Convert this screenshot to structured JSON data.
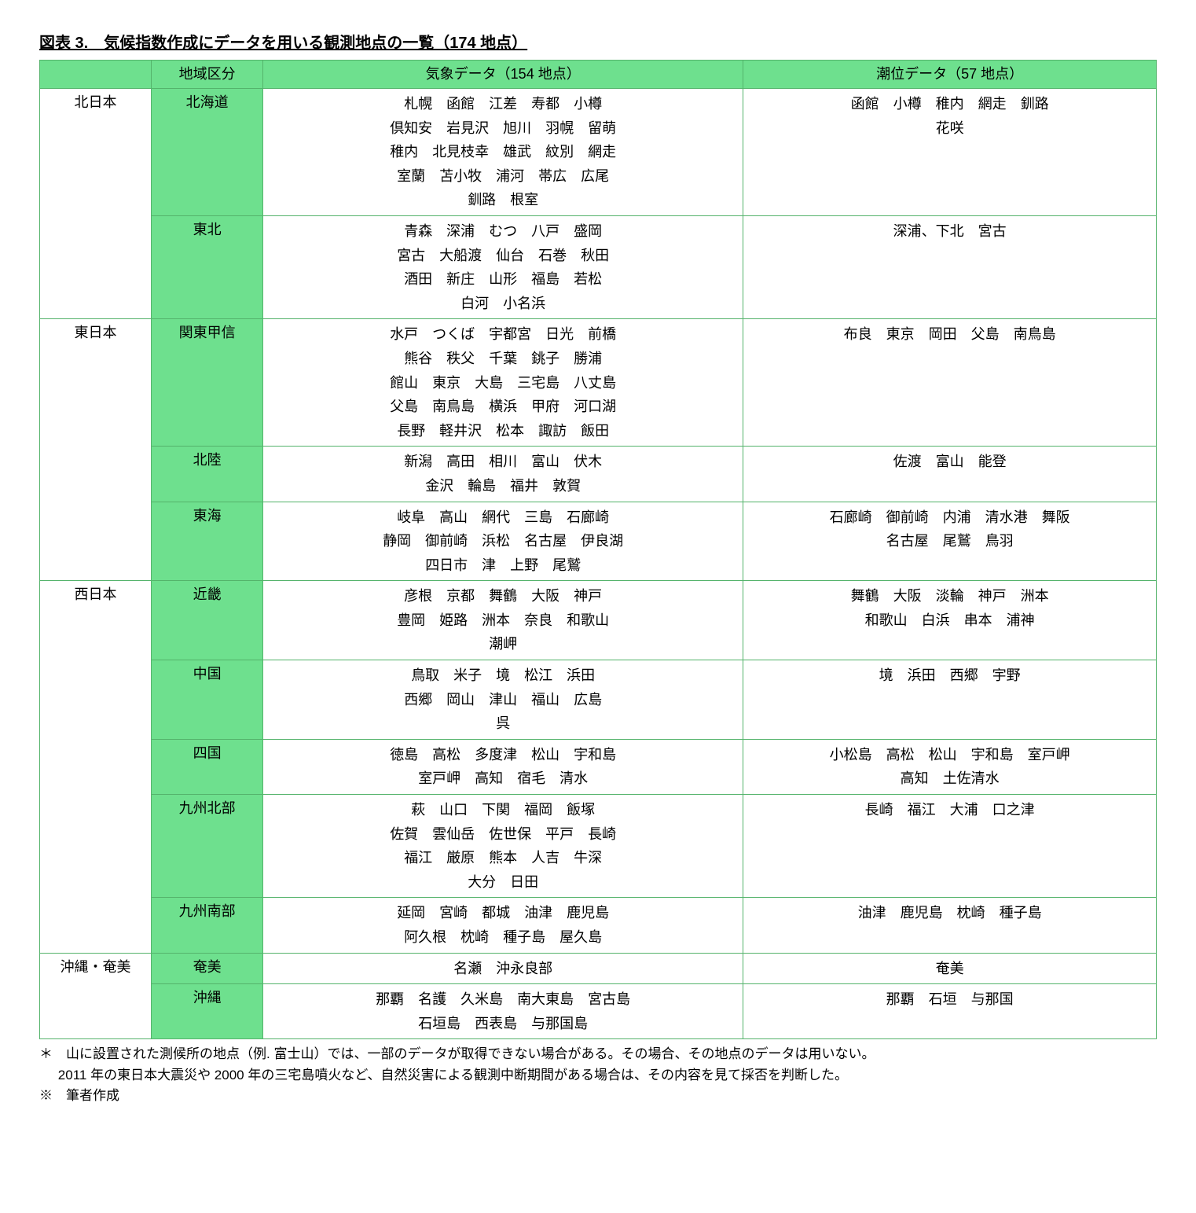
{
  "title": "図表 3.　気候指数作成にデータを用いる観測地点の一覧（174 地点）",
  "header": {
    "region": "地域区分",
    "meteorology": "気象データ（154 地点）",
    "tide": "潮位データ（57 地点）"
  },
  "areas": [
    {
      "area": "北日本",
      "regions": [
        {
          "name": "北海道",
          "met": [
            "札幌　函館　江差　寿都　小樽",
            "倶知安　岩見沢　旭川　羽幌　留萌",
            "稚内　北見枝幸　雄武　紋別　網走",
            "室蘭　苫小牧　浦河　帯広　広尾",
            "釧路　根室"
          ],
          "tide": [
            "函館　小樽　稚内　網走　釧路",
            "花咲"
          ]
        },
        {
          "name": "東北",
          "met": [
            "青森　深浦　むつ　八戸　盛岡",
            "宮古　大船渡　仙台　石巻　秋田",
            "酒田　新庄　山形　福島　若松",
            "白河　小名浜"
          ],
          "tide": [
            "深浦、下北　宮古"
          ]
        }
      ]
    },
    {
      "area": "東日本",
      "regions": [
        {
          "name": "関東甲信",
          "met": [
            "水戸　つくば　宇都宮　日光　前橋",
            "熊谷　秩父　千葉　銚子　勝浦",
            "館山　東京　大島　三宅島　八丈島",
            "父島　南鳥島　横浜　甲府　河口湖",
            "長野　軽井沢　松本　諏訪　飯田"
          ],
          "tide": [
            "布良　東京　岡田　父島　南鳥島"
          ]
        },
        {
          "name": "北陸",
          "met": [
            "新潟　高田　相川　富山　伏木",
            "金沢　輪島　福井　敦賀"
          ],
          "tide": [
            "佐渡　富山　能登"
          ]
        },
        {
          "name": "東海",
          "met": [
            "岐阜　高山　網代　三島　石廊崎",
            "静岡　御前崎　浜松　名古屋　伊良湖",
            "四日市　津　上野　尾鷲"
          ],
          "tide": [
            "石廊崎　御前崎　内浦　清水港　舞阪",
            "名古屋　尾鷲　鳥羽"
          ]
        }
      ]
    },
    {
      "area": "西日本",
      "regions": [
        {
          "name": "近畿",
          "met": [
            "彦根　京都　舞鶴　大阪　神戸",
            "豊岡　姫路　洲本　奈良　和歌山",
            "潮岬"
          ],
          "tide": [
            "舞鶴　大阪　淡輪　神戸　洲本",
            "和歌山　白浜　串本　浦神"
          ]
        },
        {
          "name": "中国",
          "met": [
            "鳥取　米子　境　松江　浜田",
            "西郷　岡山　津山　福山　広島",
            "呉"
          ],
          "tide": [
            "境　浜田　西郷　宇野"
          ]
        },
        {
          "name": "四国",
          "met": [
            "徳島　高松　多度津　松山　宇和島",
            "室戸岬　高知　宿毛　清水"
          ],
          "tide": [
            "小松島　高松　松山　宇和島　室戸岬",
            "高知　土佐清水"
          ]
        },
        {
          "name": "九州北部",
          "met": [
            "萩　山口　下関　福岡　飯塚",
            "佐賀　雲仙岳　佐世保　平戸　長崎",
            "福江　厳原　熊本　人吉　牛深",
            "大分　日田"
          ],
          "tide": [
            "長崎　福江　大浦　口之津"
          ]
        },
        {
          "name": "九州南部",
          "met": [
            "延岡　宮崎　都城　油津　鹿児島",
            "阿久根　枕崎　種子島　屋久島"
          ],
          "tide": [
            "油津　鹿児島　枕崎　種子島"
          ]
        }
      ]
    },
    {
      "area": "沖縄・奄美",
      "regions": [
        {
          "name": "奄美",
          "met": [
            "名瀬　沖永良部"
          ],
          "tide": [
            "奄美"
          ]
        },
        {
          "name": "沖縄",
          "met": [
            "那覇　名護　久米島　南大東島　宮古島",
            "石垣島　西表島　与那国島"
          ],
          "tide": [
            "那覇　石垣　与那国"
          ]
        }
      ]
    }
  ],
  "footnotes": {
    "n1a": "＊　山に設置された測候所の地点（例. 富士山）では、一部のデータが取得できない場合がある。その場合、その地点のデータは用いない。",
    "n1b": "2011 年の東日本大震災や 2000 年の三宅島噴火など、自然災害による観測中断期間がある場合は、その内容を見て採否を判断した。",
    "n2": "※　筆者作成"
  }
}
